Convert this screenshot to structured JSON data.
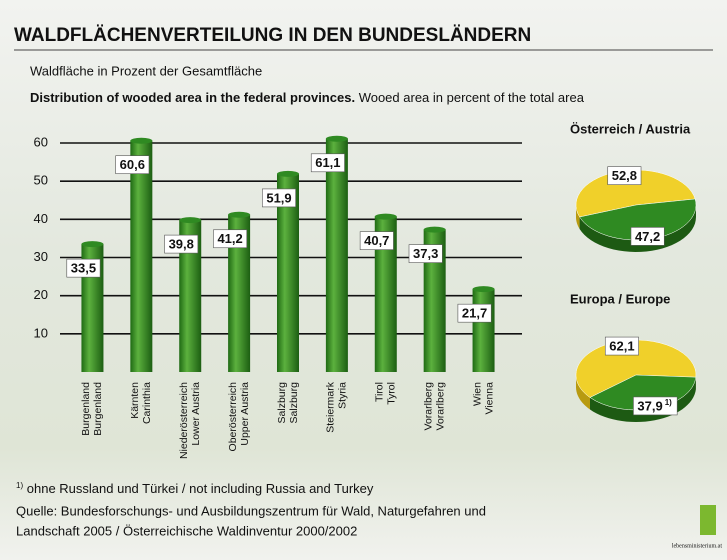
{
  "title": "WALDFLÄCHENVERTEILUNG IN DEN BUNDESLÄNDERN",
  "subtitle": "Waldfläche in Prozent der Gesamtfläche",
  "subtitle_en_bold": "Distribution of wooded area in the federal provinces.",
  "subtitle_en": "Wooed area in percent of the total area",
  "chart_data": [
    {
      "type": "bar",
      "categories": [
        "Burgenland",
        "Kärnten",
        "Niederösterreich",
        "Oberösterreich",
        "Salzburg",
        "Steiermark",
        "Tirol",
        "Vorarlberg",
        "Wien"
      ],
      "categories_en": [
        "Burgenland",
        "Carinthia",
        "Lower Austria",
        "Upper Austria",
        "Salzburg",
        "Styria",
        "Tyrol",
        "Vorarlberg",
        "Vienna"
      ],
      "values": [
        33.5,
        60.6,
        39.8,
        41.2,
        51.9,
        61.1,
        40.7,
        37.3,
        21.7
      ],
      "value_labels": [
        "33,5",
        "60,6",
        "39,8",
        "41,2",
        "51,9",
        "61,1",
        "40,7",
        "37,3",
        "21,7"
      ],
      "color": "#2f8a22",
      "ylim": [
        0,
        60
      ],
      "yticks": [
        10,
        20,
        30,
        40,
        50,
        60
      ],
      "grid": true
    },
    {
      "type": "pie",
      "title": "Österreich / Austria",
      "values": [
        52.8,
        47.2
      ],
      "value_labels": [
        "52,8",
        "47,2"
      ],
      "colors": [
        "#f0d02a",
        "#2f8a22"
      ]
    },
    {
      "type": "pie",
      "title": "Europa / Europe",
      "values": [
        62.1,
        37.9
      ],
      "value_labels": [
        "62,1",
        "37,9"
      ],
      "value_notes": [
        null,
        "1)"
      ],
      "colors": [
        "#f0d02a",
        "#2f8a22"
      ]
    }
  ],
  "footnote": {
    "marker": "1)",
    "text": "ohne Russland und Türkei / not including Russia and Turkey"
  },
  "source": [
    "Quelle: Bundesforschungs- und Ausbildungszentrum für Wald, Naturgefahren und",
    "Landschaft 2005 / Österreichische Waldinventur 2000/2002"
  ],
  "logo": "lebensministerium.at"
}
